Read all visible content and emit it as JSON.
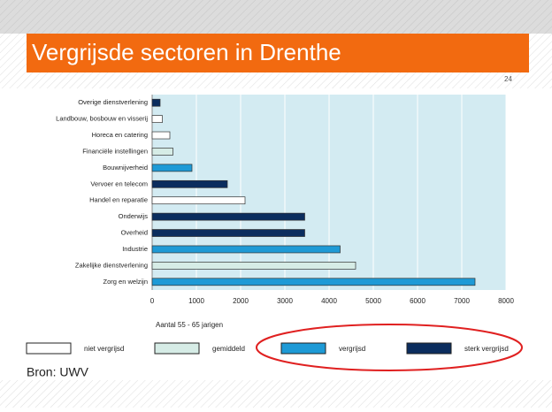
{
  "slide": {
    "title": "Vergrijsde sectoren in Drenthe",
    "page_number": "24",
    "source": "Bron: UWV"
  },
  "chart_data": {
    "type": "barh",
    "categories": [
      "Overige dienstverlening",
      "Landbouw, bosbouw en visserij",
      "Horeca en catering",
      "Financiële instellingen",
      "Bouwnijverheid",
      "Vervoer en telecom",
      "Handel en reparatie",
      "Onderwijs",
      "Overheid",
      "Industrie",
      "Zakelijke dienstverlening",
      "Zorg en welzijn"
    ],
    "series": [
      {
        "name": "niet vergrijsd",
        "color": "#ffffff",
        "values": [
          null,
          230,
          400,
          null,
          null,
          null,
          2100,
          null,
          null,
          null,
          null,
          null
        ]
      },
      {
        "name": "gemiddeld",
        "color": "#d6ece6",
        "values": [
          null,
          null,
          null,
          470,
          null,
          null,
          null,
          null,
          null,
          null,
          4600,
          null
        ]
      },
      {
        "name": "vergrijsd",
        "color": "#1e9ad6",
        "values": [
          null,
          null,
          null,
          null,
          900,
          null,
          null,
          null,
          null,
          4250,
          null,
          7300
        ]
      },
      {
        "name": "sterk vergrijsd",
        "color": "#0b2d5e",
        "values": [
          180,
          null,
          null,
          null,
          null,
          1700,
          null,
          3450,
          3450,
          null,
          null,
          null
        ]
      }
    ],
    "xlabel": "Aantal 55 - 65 jarigen",
    "xlim": [
      0,
      8000
    ],
    "xticks": [
      0,
      1000,
      2000,
      3000,
      4000,
      5000,
      6000,
      7000,
      8000
    ],
    "grid": true,
    "plot_background": "#d3ebf2"
  }
}
